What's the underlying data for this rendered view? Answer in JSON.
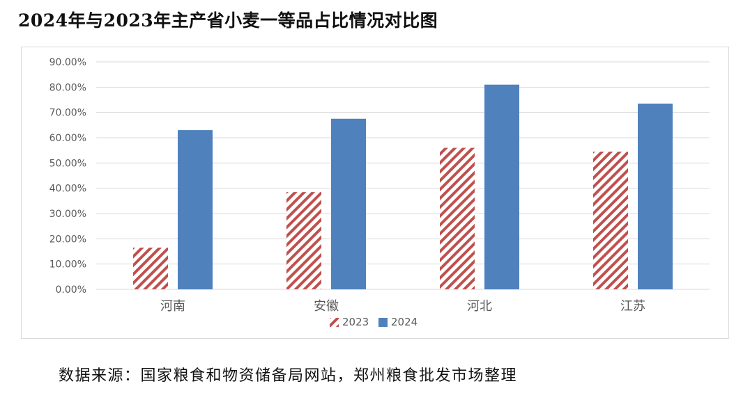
{
  "title": "2024年与2023年主产省小麦一等品占比情况对比图",
  "source": "数据来源：国家粮食和物资储备局网站，郑州粮食批发市场整理",
  "colors": {
    "series_2023": "#c0504d",
    "series_2024": "#4f81bd",
    "grid": "#d9d9d9",
    "axis_text": "#595959"
  },
  "chart_data": {
    "type": "bar",
    "categories": [
      "河南",
      "安徽",
      "河北",
      "江苏"
    ],
    "series": [
      {
        "name": "2023",
        "values": [
          16.5,
          38.5,
          56.0,
          54.5
        ],
        "fill": "striped",
        "color": "#c0504d"
      },
      {
        "name": "2024",
        "values": [
          63.0,
          67.5,
          81.0,
          73.5
        ],
        "fill": "solid",
        "color": "#4f81bd"
      }
    ],
    "y_ticks": [
      "0.00%",
      "10.00%",
      "20.00%",
      "30.00%",
      "40.00%",
      "50.00%",
      "60.00%",
      "70.00%",
      "80.00%",
      "90.00%"
    ],
    "ylim": [
      0,
      90
    ],
    "grid": true,
    "legend_position": "bottom",
    "xlabel": "",
    "ylabel": ""
  }
}
